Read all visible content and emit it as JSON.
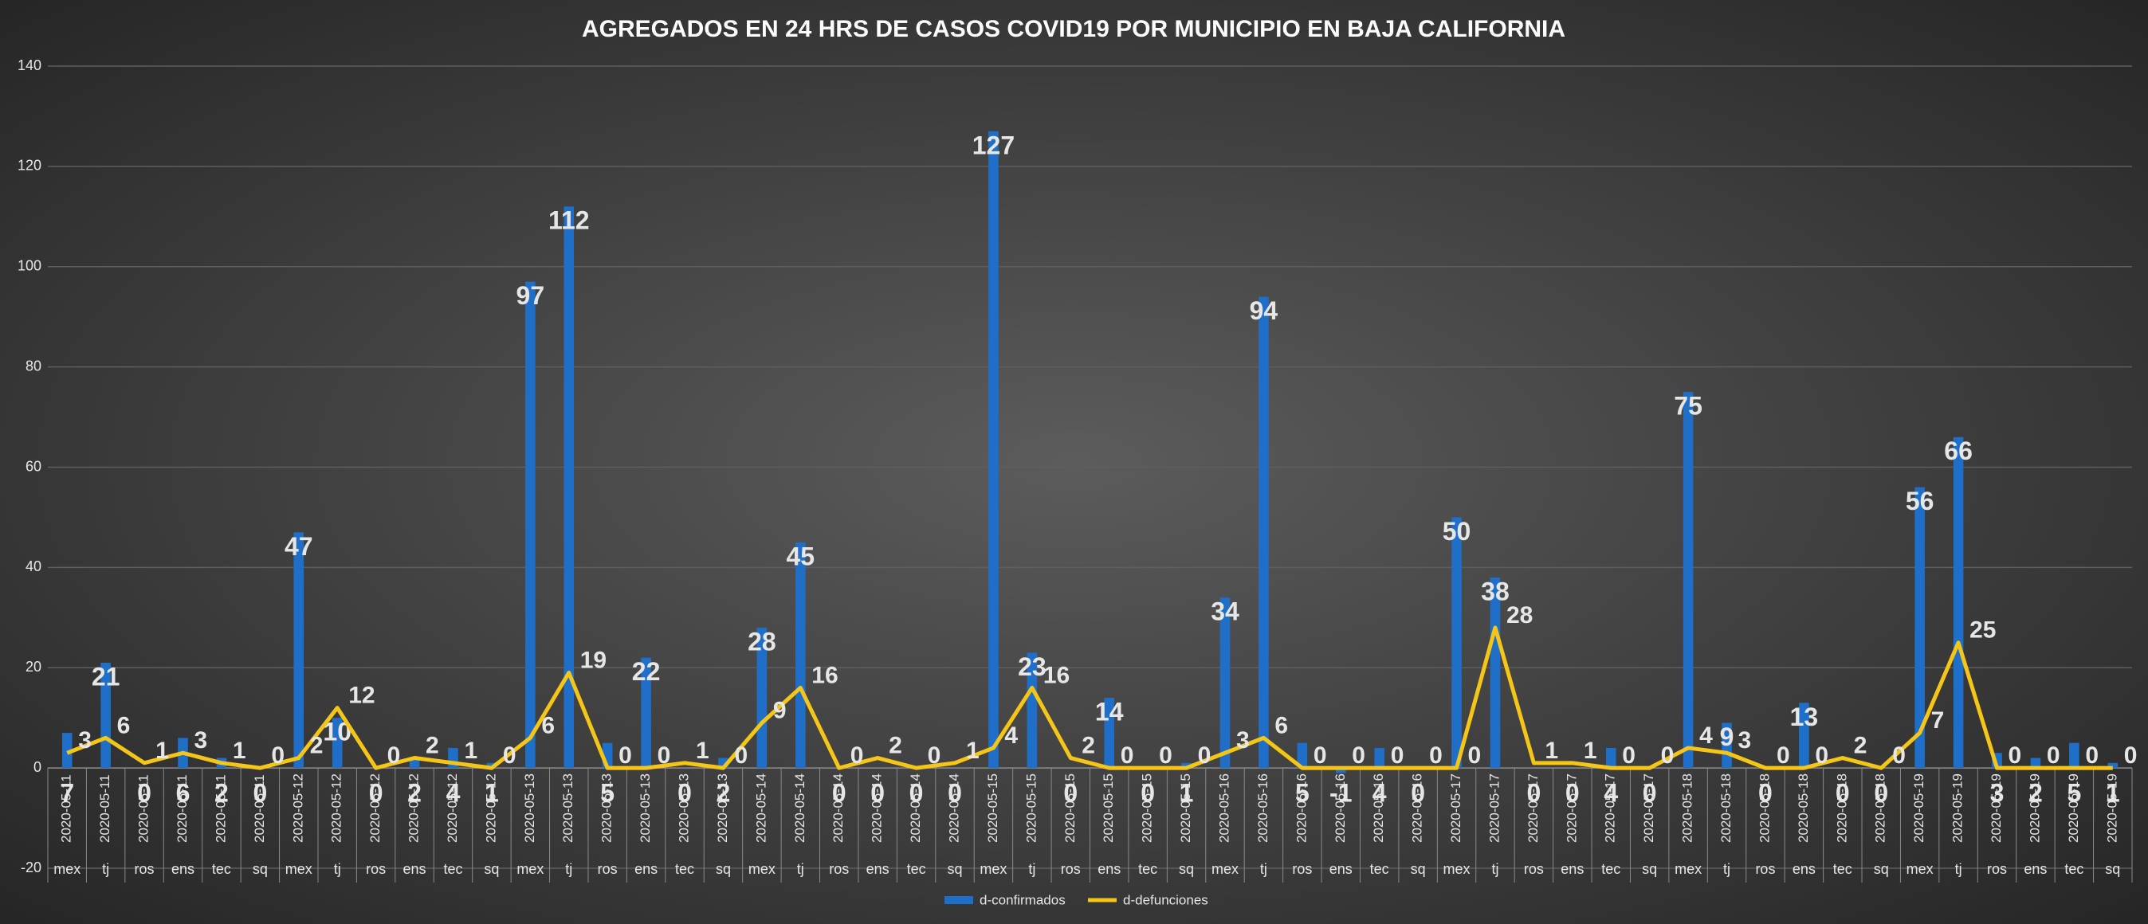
{
  "chart_data": {
    "type": "bar-line",
    "title": "AGREGADOS EN 24 HRS DE CASOS COVID19 POR MUNICIPIO EN BAJA CALIFORNIA",
    "categories": [
      "mex",
      "tj",
      "ros",
      "ens",
      "tec",
      "sq",
      "mex",
      "tj",
      "ros",
      "ens",
      "tec",
      "sq",
      "mex",
      "tj",
      "ros",
      "ens",
      "tec",
      "sq",
      "mex",
      "tj",
      "ros",
      "ens",
      "tec",
      "sq",
      "mex",
      "tj",
      "ros",
      "ens",
      "tec",
      "sq",
      "mex",
      "tj",
      "ros",
      "ens",
      "tec",
      "sq",
      "mex",
      "tj",
      "ros",
      "ens",
      "tec",
      "sq",
      "mex",
      "tj",
      "ros",
      "ens",
      "tec",
      "sq",
      "mex",
      "tj",
      "ros",
      "ens",
      "tec",
      "sq"
    ],
    "category_dates": [
      "2020-05-11",
      "2020-05-11",
      "2020-05-11",
      "2020-05-11",
      "2020-05-11",
      "2020-05-11",
      "2020-05-12",
      "2020-05-12",
      "2020-05-12",
      "2020-05-12",
      "2020-05-12",
      "2020-05-12",
      "2020-05-13",
      "2020-05-13",
      "2020-05-13",
      "2020-05-13",
      "2020-05-13",
      "2020-05-13",
      "2020-05-14",
      "2020-05-14",
      "2020-05-14",
      "2020-05-14",
      "2020-05-14",
      "2020-05-14",
      "2020-05-15",
      "2020-05-15",
      "2020-05-15",
      "2020-05-15",
      "2020-05-15",
      "2020-05-15",
      "2020-05-16",
      "2020-05-16",
      "2020-05-16",
      "2020-05-16",
      "2020-05-16",
      "2020-05-16",
      "2020-05-17",
      "2020-05-17",
      "2020-05-17",
      "2020-05-17",
      "2020-05-17",
      "2020-05-17",
      "2020-05-18",
      "2020-05-18",
      "2020-05-18",
      "2020-05-18",
      "2020-05-18",
      "2020-05-18",
      "2020-05-19",
      "2020-05-19",
      "2020-05-19",
      "2020-05-19",
      "2020-05-19",
      "2020-05-19"
    ],
    "series": [
      {
        "name": "d-confirmados",
        "type": "bar",
        "color": "#1f6fc8",
        "values": [
          7,
          21,
          0,
          6,
          2,
          0,
          47,
          10,
          0,
          2,
          4,
          1,
          97,
          112,
          5,
          22,
          0,
          2,
          28,
          45,
          0,
          0,
          0,
          0,
          127,
          23,
          0,
          14,
          0,
          1,
          34,
          94,
          5,
          -1,
          4,
          0,
          50,
          38,
          0,
          0,
          4,
          0,
          75,
          9,
          0,
          13,
          0,
          0,
          56,
          66,
          3,
          2,
          5,
          1
        ]
      },
      {
        "name": "d-defunciones",
        "type": "line",
        "color": "#f5c518",
        "values": [
          3,
          6,
          1,
          3,
          1,
          0,
          2,
          12,
          0,
          2,
          1,
          0,
          6,
          19,
          0,
          0,
          1,
          0,
          9,
          16,
          0,
          2,
          0,
          1,
          4,
          16,
          2,
          0,
          0,
          0,
          3,
          6,
          0,
          0,
          0,
          0,
          0,
          28,
          1,
          1,
          0,
          0,
          4,
          3,
          0,
          0,
          2,
          0,
          7,
          25,
          0,
          0,
          0,
          0
        ]
      }
    ],
    "ylim": [
      -20,
      140
    ],
    "yticks": [
      -20,
      0,
      20,
      40,
      60,
      80,
      100,
      120,
      140
    ],
    "grid": true,
    "legend": "bottom"
  }
}
